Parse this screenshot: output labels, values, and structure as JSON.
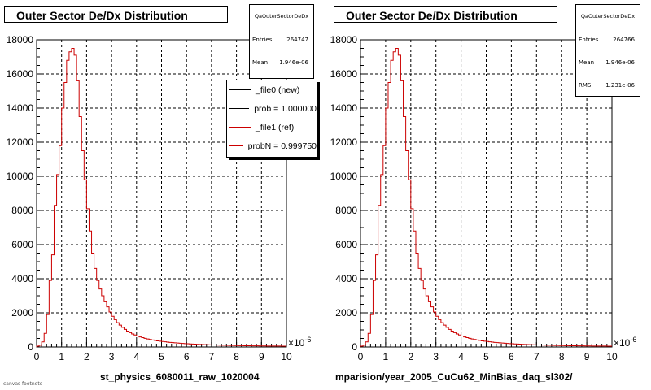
{
  "chart_data": [
    {
      "type": "histogram",
      "title": "Outer Sector De/Dx Distribution",
      "xlabel": "st_physics_6080011_raw_1020004",
      "x_multiplier_label": "×10",
      "x_multiplier_exp": "-6",
      "xlim": [
        0,
        10
      ],
      "ylim": [
        0,
        18000
      ],
      "x_ticks": [
        0,
        1,
        2,
        3,
        4,
        5,
        6,
        7,
        8,
        9,
        10
      ],
      "y_ticks": [
        0,
        2000,
        4000,
        6000,
        8000,
        10000,
        12000,
        14000,
        16000,
        18000
      ],
      "grid": true,
      "stats": {
        "name": "QaOuterSectorDeDx",
        "rows": [
          {
            "label": "Entries",
            "value": "264747"
          },
          {
            "label": "Mean",
            "value": "1.946e-06"
          }
        ]
      },
      "legend": {
        "placement": "top-right",
        "entries": [
          {
            "label": "_file0 (new)",
            "color": "#000000"
          },
          {
            "label": "prob = 1.000000",
            "color": "#000000"
          },
          {
            "label": "_file1 (ref)",
            "color": "#cc0000"
          },
          {
            "label": "probN = 0.999750",
            "color": "#cc0000"
          }
        ]
      },
      "series": [
        {
          "color": "#cc0000",
          "bin_width": 0.1,
          "bin_start": 0,
          "values": [
            50,
            100,
            300,
            800,
            1900,
            3900,
            5400,
            8300,
            10100,
            11800,
            14000,
            15500,
            16800,
            17300,
            17500,
            17100,
            15600,
            13500,
            11500,
            9800,
            8100,
            6800,
            5500,
            4600,
            3900,
            3400,
            3000,
            2650,
            2350,
            2050,
            1800,
            1600,
            1420,
            1280,
            1150,
            1030,
            930,
            840,
            760,
            700,
            640,
            590,
            545,
            505,
            470,
            440,
            410,
            385,
            360,
            340,
            320,
            302,
            285,
            270,
            256,
            243,
            230,
            218,
            207,
            197,
            188,
            180,
            172,
            164,
            157,
            150,
            144,
            138,
            132,
            127,
            122,
            117,
            112,
            108,
            104,
            100,
            96,
            92,
            89,
            86,
            83,
            80,
            77,
            74,
            72,
            70,
            68,
            66,
            64,
            62,
            60,
            58,
            56,
            55,
            54,
            53,
            52,
            51,
            50,
            49
          ]
        }
      ]
    },
    {
      "type": "histogram",
      "title": "Outer Sector De/Dx Distribution",
      "xlabel": "mparision/year_2005_CuCu62_MinBias_daq_sl302/",
      "x_multiplier_label": "×10",
      "x_multiplier_exp": "-6",
      "xlim": [
        0,
        10
      ],
      "ylim": [
        0,
        18000
      ],
      "x_ticks": [
        0,
        1,
        2,
        3,
        4,
        5,
        6,
        7,
        8,
        9,
        10
      ],
      "y_ticks": [
        0,
        2000,
        4000,
        6000,
        8000,
        10000,
        12000,
        14000,
        16000,
        18000
      ],
      "grid": true,
      "stats": {
        "name": "QaOuterSectorDeDx",
        "rows": [
          {
            "label": "Entries",
            "value": "264766"
          },
          {
            "label": "Mean",
            "value": "1.946e-06"
          },
          {
            "label": "RMS",
            "value": "1.231e-06"
          }
        ]
      },
      "series": [
        {
          "color": "#cc0000",
          "bin_width": 0.1,
          "bin_start": 0,
          "values": [
            50,
            100,
            300,
            800,
            1900,
            3900,
            5400,
            8300,
            10100,
            11800,
            14000,
            15500,
            16800,
            17300,
            17500,
            17100,
            15600,
            13500,
            11500,
            9800,
            8100,
            6800,
            5500,
            4600,
            3900,
            3400,
            3000,
            2650,
            2350,
            2050,
            1800,
            1600,
            1420,
            1280,
            1150,
            1030,
            930,
            840,
            760,
            700,
            640,
            590,
            545,
            505,
            470,
            440,
            410,
            385,
            360,
            340,
            320,
            302,
            285,
            270,
            256,
            243,
            230,
            218,
            207,
            197,
            188,
            180,
            172,
            164,
            157,
            150,
            144,
            138,
            132,
            127,
            122,
            117,
            112,
            108,
            104,
            100,
            96,
            92,
            89,
            86,
            83,
            80,
            77,
            74,
            72,
            70,
            68,
            66,
            64,
            62,
            60,
            58,
            56,
            55,
            54,
            53,
            52,
            51,
            50,
            49
          ]
        }
      ]
    }
  ],
  "footer": {
    "tiny_text": "canvas footnote"
  }
}
